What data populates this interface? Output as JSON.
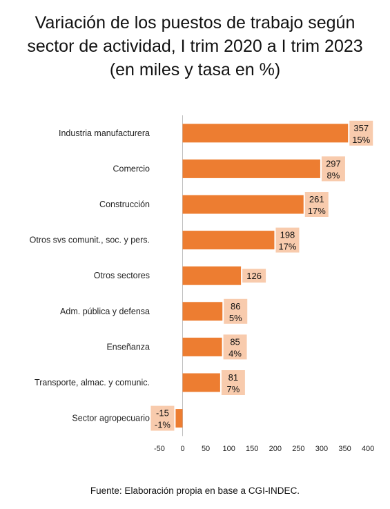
{
  "title_lines": [
    "Variación de los puestos de trabajo según",
    "sector de actividad, I trim 2020 a I trim 2023",
    "(en miles y tasa en %)"
  ],
  "source": "Fuente: Elaboración propia en base a CGI-INDEC.",
  "colors": {
    "bar": "#ed7d31",
    "label_bg": "#f8cbad",
    "axis": "#bfbfbf"
  },
  "chart_data": {
    "type": "bar",
    "orientation": "horizontal",
    "title": "Variación de los puestos de trabajo según sector de actividad, I trim 2020 a I trim 2023 (en miles y tasa en %)",
    "categories": [
      "Industria manufacturera",
      "Comercio",
      "Construcción",
      "Otros svs comunit., soc. y pers.",
      "Otros sectores",
      "Adm. pública y defensa",
      "Enseñanza",
      "Transporte, almac. y comunic.",
      "Sector agropecuario"
    ],
    "values": [
      357,
      297,
      261,
      198,
      126,
      86,
      85,
      81,
      -15
    ],
    "rates": [
      "15%",
      "8%",
      "17%",
      "17%",
      "",
      "5%",
      "4%",
      "7%",
      "-1%"
    ],
    "xlim": [
      -50,
      400
    ],
    "xticks": [
      -50,
      0,
      50,
      100,
      150,
      200,
      250,
      300,
      350,
      400
    ],
    "grid": false,
    "legend": "none"
  }
}
